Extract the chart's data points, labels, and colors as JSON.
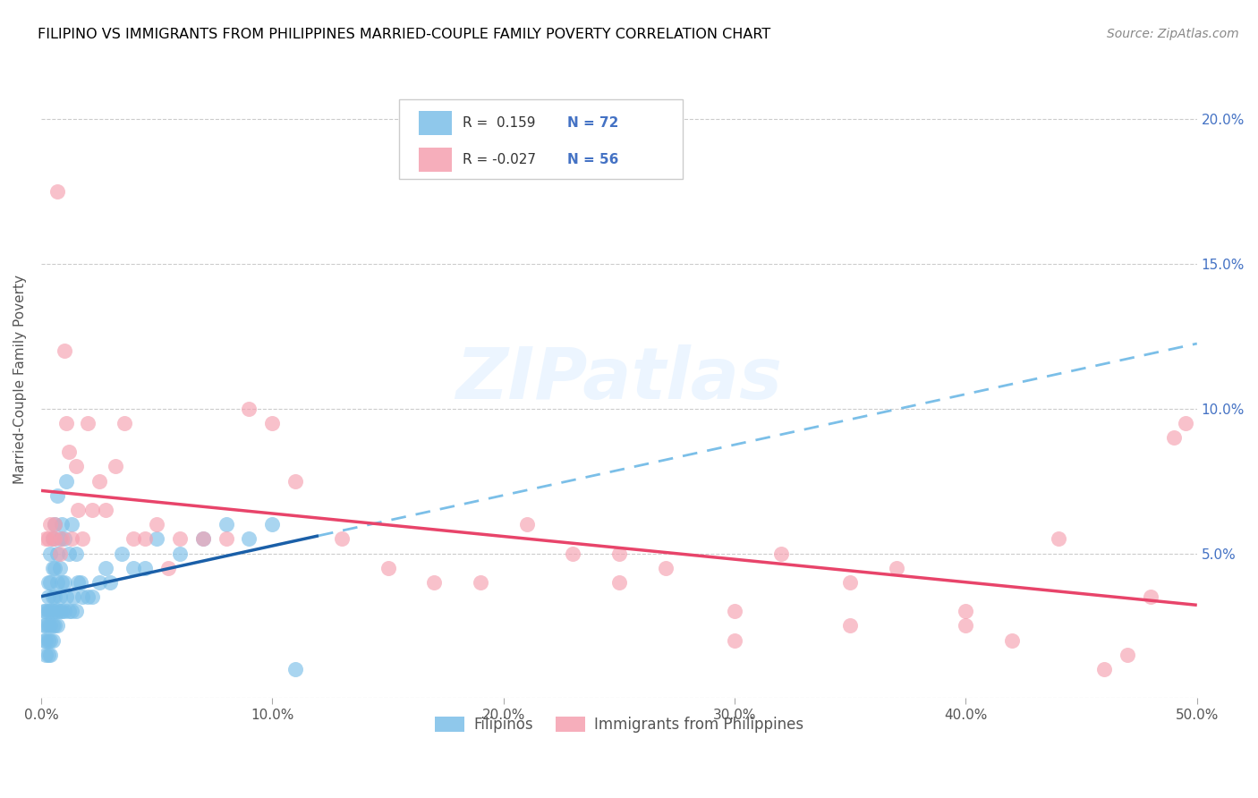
{
  "title": "FILIPINO VS IMMIGRANTS FROM PHILIPPINES MARRIED-COUPLE FAMILY POVERTY CORRELATION CHART",
  "source": "Source: ZipAtlas.com",
  "ylabel": "Married-Couple Family Poverty",
  "xlim": [
    0,
    0.5
  ],
  "ylim": [
    0,
    0.22
  ],
  "xticks": [
    0.0,
    0.1,
    0.2,
    0.3,
    0.4,
    0.5
  ],
  "yticks": [
    0.0,
    0.05,
    0.1,
    0.15,
    0.2
  ],
  "xtick_labels": [
    "0.0%",
    "10.0%",
    "20.0%",
    "30.0%",
    "40.0%",
    "50.0%"
  ],
  "ytick_labels_right": [
    "",
    "5.0%",
    "10.0%",
    "15.0%",
    "20.0%"
  ],
  "blue_color": "#7bbfe8",
  "pink_color": "#f5a0b0",
  "blue_line_color": "#1a5fa8",
  "pink_line_color": "#e8446a",
  "blue_dash_color": "#7bbfe8",
  "R_blue": 0.159,
  "N_blue": 72,
  "R_pink": -0.027,
  "N_pink": 56,
  "legend_label_blue": "Filipinos",
  "legend_label_pink": "Immigrants from Philippines",
  "blue_x": [
    0.001,
    0.001,
    0.001,
    0.002,
    0.002,
    0.002,
    0.002,
    0.003,
    0.003,
    0.003,
    0.003,
    0.003,
    0.003,
    0.004,
    0.004,
    0.004,
    0.004,
    0.004,
    0.004,
    0.005,
    0.005,
    0.005,
    0.005,
    0.005,
    0.005,
    0.006,
    0.006,
    0.006,
    0.006,
    0.006,
    0.007,
    0.007,
    0.007,
    0.007,
    0.007,
    0.008,
    0.008,
    0.008,
    0.008,
    0.009,
    0.009,
    0.009,
    0.01,
    0.01,
    0.01,
    0.011,
    0.011,
    0.012,
    0.012,
    0.013,
    0.013,
    0.014,
    0.015,
    0.015,
    0.016,
    0.017,
    0.018,
    0.02,
    0.022,
    0.025,
    0.028,
    0.03,
    0.035,
    0.04,
    0.045,
    0.05,
    0.06,
    0.07,
    0.08,
    0.09,
    0.1,
    0.11
  ],
  "blue_y": [
    0.02,
    0.025,
    0.03,
    0.015,
    0.02,
    0.025,
    0.03,
    0.015,
    0.02,
    0.025,
    0.03,
    0.035,
    0.04,
    0.015,
    0.02,
    0.025,
    0.03,
    0.04,
    0.05,
    0.02,
    0.025,
    0.03,
    0.035,
    0.045,
    0.055,
    0.025,
    0.03,
    0.035,
    0.045,
    0.06,
    0.025,
    0.03,
    0.04,
    0.05,
    0.07,
    0.03,
    0.035,
    0.045,
    0.055,
    0.03,
    0.04,
    0.06,
    0.03,
    0.04,
    0.055,
    0.035,
    0.075,
    0.03,
    0.05,
    0.03,
    0.06,
    0.035,
    0.03,
    0.05,
    0.04,
    0.04,
    0.035,
    0.035,
    0.035,
    0.04,
    0.045,
    0.04,
    0.05,
    0.045,
    0.045,
    0.055,
    0.05,
    0.055,
    0.06,
    0.055,
    0.06,
    0.01
  ],
  "pink_x": [
    0.002,
    0.003,
    0.004,
    0.005,
    0.006,
    0.006,
    0.007,
    0.008,
    0.009,
    0.01,
    0.011,
    0.012,
    0.013,
    0.015,
    0.016,
    0.018,
    0.02,
    0.022,
    0.025,
    0.028,
    0.032,
    0.036,
    0.04,
    0.045,
    0.05,
    0.055,
    0.06,
    0.07,
    0.08,
    0.09,
    0.1,
    0.11,
    0.13,
    0.15,
    0.17,
    0.19,
    0.21,
    0.23,
    0.25,
    0.27,
    0.3,
    0.32,
    0.35,
    0.37,
    0.4,
    0.42,
    0.44,
    0.46,
    0.47,
    0.48,
    0.49,
    0.495,
    0.25,
    0.3,
    0.35,
    0.4
  ],
  "pink_y": [
    0.055,
    0.055,
    0.06,
    0.055,
    0.055,
    0.06,
    0.175,
    0.05,
    0.055,
    0.12,
    0.095,
    0.085,
    0.055,
    0.08,
    0.065,
    0.055,
    0.095,
    0.065,
    0.075,
    0.065,
    0.08,
    0.095,
    0.055,
    0.055,
    0.06,
    0.045,
    0.055,
    0.055,
    0.055,
    0.1,
    0.095,
    0.075,
    0.055,
    0.045,
    0.04,
    0.04,
    0.06,
    0.05,
    0.05,
    0.045,
    0.03,
    0.05,
    0.025,
    0.045,
    0.025,
    0.02,
    0.055,
    0.01,
    0.015,
    0.035,
    0.09,
    0.095,
    0.04,
    0.02,
    0.04,
    0.03
  ]
}
